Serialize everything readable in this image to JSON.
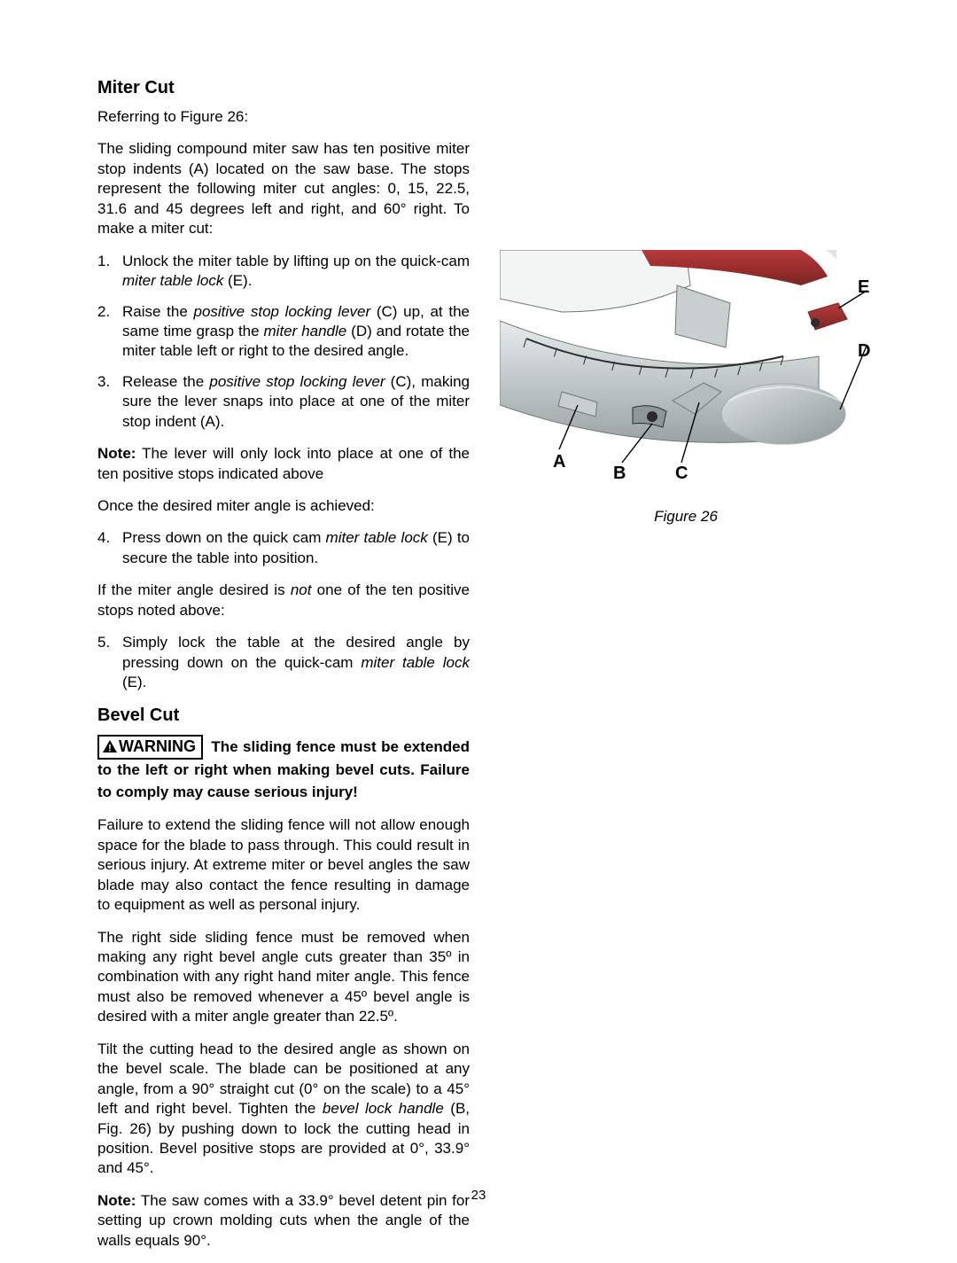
{
  "page_number": "23",
  "miter": {
    "title": "Miter Cut",
    "ref": "Referring to Figure 26:",
    "intro": "The sliding compound miter saw has ten positive miter stop indents (A) located on the saw base. The stops represent the following miter cut angles: 0, 15, 22.5, 31.6 and 45 degrees left and right, and 60° right. To make a miter cut:",
    "step1_a": "Unlock the miter table by lifting up on the quick-cam ",
    "step1_b": "miter table lock",
    "step1_c": " (E).",
    "step2_a": "Raise the ",
    "step2_b": "positive stop locking lever",
    "step2_c": " (C) up, at the same time grasp the ",
    "step2_d": "miter handle",
    "step2_e": " (D) and rotate the miter table left or right to the desired angle.",
    "step3_a": "Release the ",
    "step3_b": "positive stop locking lever",
    "step3_c": " (C), making sure the lever snaps into place at one of the miter stop indent (A).",
    "note1_a": "Note:",
    "note1_b": " The lever will only lock into place at one of the ten positive stops indicated above",
    "once": "Once the desired miter angle is achieved:",
    "step4_a": "Press down on the quick cam ",
    "step4_b": "miter table lock",
    "step4_c": " (E) to secure the table into position.",
    "if_a": "If the miter angle desired is ",
    "if_b": "not",
    "if_c": " one of the ten positive stops noted above:",
    "step5_a": "Simply lock the table at the desired angle by pressing down on the quick-cam ",
    "step5_b": "miter table lock",
    "step5_c": " (E)."
  },
  "bevel": {
    "title": "Bevel Cut",
    "warn_badge": "WARNING",
    "warn_text": "The sliding fence must be extended to the left or right when making bevel cuts. Failure to comply may cause serious injury!",
    "p1": "Failure to extend the sliding fence will not allow enough space for the blade to pass through. This could result in serious injury. At extreme miter or bevel angles the saw blade may also contact the fence resulting in damage to equipment as well as personal injury.",
    "p2": "The right side sliding fence must be removed when making any right bevel angle cuts greater than 35º in combination with any right hand miter angle. This fence must also be removed whenever a 45º bevel angle is desired with a miter angle greater than 22.5º.",
    "p3_a": "Tilt the cutting head to the desired angle as shown on the bevel scale. The blade can be positioned at any angle, from a 90° straight cut (0° on the scale) to a 45° left and right bevel. Tighten the ",
    "p3_b": "bevel lock handle",
    "p3_c": " (B, Fig. 26) by pushing down to lock the cutting head in position. Bevel positive stops are provided at 0°, 33.9° and 45°.",
    "note2_a": "Note:",
    "note2_b": " The saw comes with a 33.9° bevel detent pin for setting up crown molding cuts when the angle of the walls equals 90°."
  },
  "figure": {
    "caption": "Figure 26",
    "labels": {
      "A": "A",
      "B": "B",
      "C": "C",
      "D": "D",
      "E": "E"
    },
    "colors": {
      "plastic_light": "#dfe3e3",
      "plastic_mid": "#b4bcbc",
      "plastic_dark": "#8d9797",
      "metal": "#c9cfcf",
      "metal_dark": "#6f7878",
      "red": "#b83a3a",
      "red_dark": "#7c2424",
      "black": "#2b2b2b",
      "table": "#9aa3a3",
      "scale_bg": "#e7ebeb"
    }
  }
}
